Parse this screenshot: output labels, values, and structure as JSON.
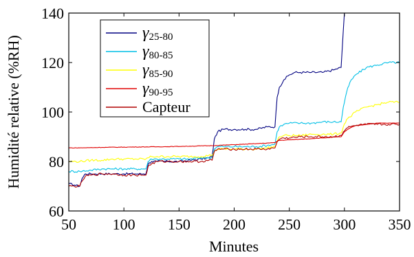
{
  "chart_data": {
    "type": "line",
    "xlabel": "Minutes",
    "ylabel": "Humidité relative (%RH)",
    "xlim": [
      50,
      350
    ],
    "ylim": [
      60,
      140
    ],
    "xticks": [
      "50",
      "100",
      "150",
      "200",
      "250",
      "300",
      "350"
    ],
    "yticks": [
      "60",
      "80",
      "100",
      "120",
      "140"
    ],
    "grid": false,
    "legend_position": "top-left",
    "series": [
      {
        "legend": {
          "glyph": "γ",
          "sub": "25-80"
        },
        "color": "#000080",
        "x": [
          50,
          55,
          60,
          62,
          65,
          70,
          80,
          90,
          100,
          110,
          118,
          120,
          122,
          125,
          130,
          140,
          150,
          160,
          170,
          177,
          180,
          182,
          185,
          190,
          200,
          210,
          220,
          230,
          237,
          239,
          241,
          245,
          250,
          255,
          260,
          270,
          280,
          290,
          297,
          299,
          300
        ],
        "y": [
          71,
          70.5,
          70,
          73,
          75,
          75,
          75,
          75,
          75,
          75,
          75,
          75,
          79,
          80,
          80,
          80,
          80,
          80.5,
          81,
          81.5,
          82,
          89,
          92,
          93,
          93,
          93,
          93,
          94,
          94,
          106,
          110,
          113,
          115,
          116,
          116,
          116,
          116,
          117,
          118,
          133,
          140
        ]
      },
      {
        "legend": {
          "glyph": "γ",
          "sub": "80-85"
        },
        "color": "#00bfe6",
        "x": [
          50,
          60,
          70,
          80,
          90,
          100,
          110,
          118,
          120,
          122,
          125,
          130,
          140,
          150,
          160,
          170,
          177,
          180,
          182,
          185,
          190,
          200,
          210,
          220,
          230,
          237,
          239,
          241,
          245,
          250,
          260,
          270,
          280,
          290,
          297,
          299,
          302,
          305,
          310,
          320,
          330,
          340,
          350
        ],
        "y": [
          76,
          76,
          76.5,
          77,
          77,
          77,
          77,
          77,
          77,
          80,
          81,
          81,
          81,
          81,
          81,
          81.5,
          81.5,
          81.5,
          85,
          86,
          86,
          86,
          86,
          86,
          86.5,
          87,
          92,
          94,
          95,
          95.5,
          95.5,
          95.5,
          96,
          96,
          96,
          102,
          108,
          112,
          115,
          118,
          119,
          120,
          120
        ]
      },
      {
        "legend": {
          "glyph": "γ",
          "sub": "85-90"
        },
        "color": "#ffff00",
        "x": [
          50,
          60,
          70,
          80,
          90,
          100,
          110,
          118,
          120,
          122,
          125,
          130,
          140,
          150,
          160,
          170,
          177,
          180,
          182,
          185,
          190,
          200,
          210,
          220,
          230,
          237,
          239,
          241,
          245,
          250,
          260,
          270,
          280,
          290,
          297,
          299,
          302,
          305,
          310,
          320,
          330,
          340,
          350
        ],
        "y": [
          80,
          80,
          80.5,
          80.5,
          81,
          81,
          81,
          81,
          81,
          81.5,
          82,
          82,
          82,
          82,
          82,
          82,
          82.5,
          82.5,
          84,
          85,
          85,
          85,
          85,
          85,
          85.5,
          86,
          88,
          90,
          90.5,
          90.5,
          90.5,
          91,
          91,
          91,
          91.5,
          94,
          97,
          98,
          100,
          102,
          103,
          104,
          104
        ]
      },
      {
        "legend": {
          "glyph": "γ",
          "sub": "90-95"
        },
        "color": "#e00000",
        "x": [
          50,
          60,
          80,
          100,
          120,
          140,
          160,
          180,
          200,
          220,
          237,
          240,
          260,
          280,
          297,
          300,
          305,
          310,
          320,
          330,
          340,
          350
        ],
        "y": [
          85.5,
          85.5,
          85.7,
          85.8,
          85.9,
          86,
          86.2,
          86.4,
          86.8,
          87.2,
          87.6,
          88.5,
          89,
          89.5,
          90,
          92,
          93.5,
          94.5,
          95,
          95.5,
          95.5,
          95.5
        ]
      },
      {
        "legend": {
          "glyph": "",
          "sub": "",
          "text": "Capteur"
        },
        "color": "#b00000",
        "x": [
          50,
          55,
          60,
          62,
          65,
          70,
          80,
          90,
          100,
          110,
          118,
          120,
          122,
          125,
          130,
          140,
          150,
          160,
          170,
          177,
          180,
          182,
          185,
          190,
          200,
          210,
          220,
          230,
          237,
          239,
          241,
          245,
          250,
          260,
          270,
          280,
          290,
          297,
          299,
          302,
          305,
          310,
          320,
          330,
          340,
          350
        ],
        "y": [
          70,
          70,
          70,
          72,
          74,
          74.5,
          75,
          75,
          74.5,
          74.5,
          74.5,
          74.5,
          78,
          79,
          80,
          80,
          80,
          80,
          80,
          80.5,
          80.5,
          84,
          85,
          85,
          85,
          85,
          85,
          85,
          85.5,
          88,
          89,
          89.5,
          89.5,
          90,
          90,
          90,
          90,
          90.5,
          92,
          93.5,
          94,
          94.5,
          95,
          95,
          95,
          95
        ]
      }
    ]
  }
}
